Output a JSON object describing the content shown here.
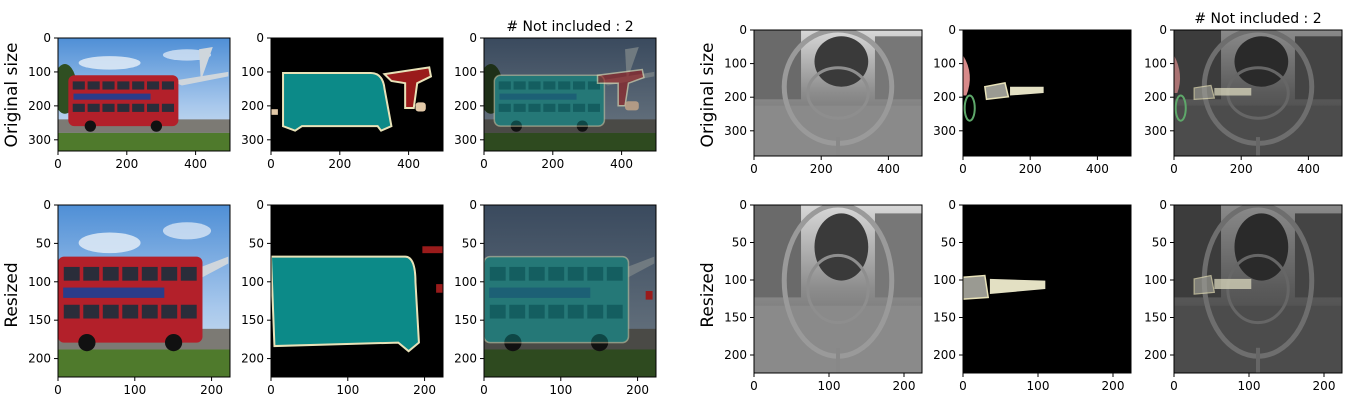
{
  "row_labels": [
    "Original size",
    "Resized"
  ],
  "panel_title_text": "# Not included : 2",
  "panels": [
    {
      "id": "bus-orig-image",
      "row": 0,
      "kind": "bus-image",
      "x_ticks": [
        "0",
        "200",
        "400"
      ],
      "y_ticks": [
        "0",
        "100",
        "200",
        "300"
      ]
    },
    {
      "id": "bus-orig-mask",
      "row": 0,
      "kind": "bus-mask",
      "x_ticks": [
        "0",
        "200",
        "400"
      ],
      "y_ticks": [
        "0",
        "100",
        "200",
        "300"
      ]
    },
    {
      "id": "bus-orig-overlay",
      "row": 0,
      "kind": "bus-overlay",
      "title": "# Not included : 2",
      "x_ticks": [
        "0",
        "200",
        "400"
      ],
      "y_ticks": [
        "0",
        "100",
        "200",
        "300"
      ]
    },
    {
      "id": "street-orig-image",
      "row": 0,
      "kind": "street-image",
      "x_ticks": [
        "0",
        "200",
        "400"
      ],
      "y_ticks": [
        "0",
        "100",
        "200",
        "300"
      ]
    },
    {
      "id": "street-orig-mask",
      "row": 0,
      "kind": "street-mask",
      "x_ticks": [
        "0",
        "200",
        "400"
      ],
      "y_ticks": [
        "0",
        "100",
        "200",
        "300"
      ]
    },
    {
      "id": "street-orig-overlay",
      "row": 0,
      "kind": "street-overlay",
      "title": "# Not included : 2",
      "x_ticks": [
        "0",
        "200",
        "400"
      ],
      "y_ticks": [
        "0",
        "100",
        "200",
        "300"
      ]
    },
    {
      "id": "bus-resized-image",
      "row": 1,
      "kind": "bus-image-r",
      "x_ticks": [
        "0",
        "100",
        "200"
      ],
      "y_ticks": [
        "0",
        "50",
        "100",
        "150",
        "200"
      ]
    },
    {
      "id": "bus-resized-mask",
      "row": 1,
      "kind": "bus-mask-r",
      "x_ticks": [
        "0",
        "100",
        "200"
      ],
      "y_ticks": [
        "0",
        "50",
        "100",
        "150",
        "200"
      ]
    },
    {
      "id": "bus-resized-overlay",
      "row": 1,
      "kind": "bus-overlay-r",
      "x_ticks": [
        "0",
        "100",
        "200"
      ],
      "y_ticks": [
        "0",
        "50",
        "100",
        "150",
        "200"
      ]
    },
    {
      "id": "street-resized-image",
      "row": 1,
      "kind": "street-image-r",
      "x_ticks": [
        "0",
        "100",
        "200"
      ],
      "y_ticks": [
        "0",
        "50",
        "100",
        "150",
        "200"
      ]
    },
    {
      "id": "street-resized-mask",
      "row": 1,
      "kind": "street-mask-r",
      "x_ticks": [
        "0",
        "100",
        "200"
      ],
      "y_ticks": [
        "0",
        "50",
        "100",
        "150",
        "200"
      ]
    },
    {
      "id": "street-resized-overlay",
      "row": 1,
      "kind": "street-overlay-r",
      "x_ticks": [
        "0",
        "100",
        "200"
      ],
      "y_ticks": [
        "0",
        "50",
        "100",
        "150",
        "200"
      ]
    }
  ],
  "colors": {
    "bus_red": "#b3202a",
    "bus_teal": "#0c8a88",
    "plane_red": "#9a1b1b",
    "mask_outline": "#e8e2b8",
    "sky": "#7fb2e6",
    "grass": "#4f7a2c",
    "mask_gray": "#9a9a92",
    "mask_cream": "#e3e0c3",
    "mask_pink": "#d88a8a",
    "mask_green": "#5ea86a"
  }
}
